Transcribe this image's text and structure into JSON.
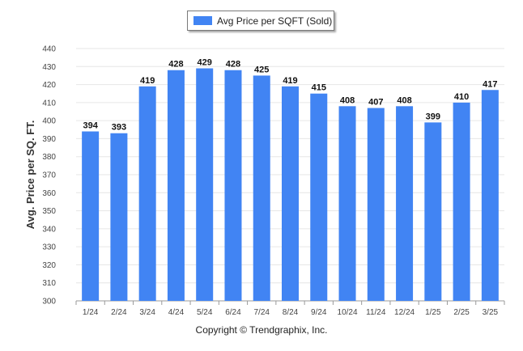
{
  "colors": {
    "bar": "#4184f3",
    "grid": "#e6e6e6",
    "axis": "#999999"
  },
  "legend": {
    "label": "Avg Price per SQFT (Sold)"
  },
  "footer": {
    "copyright": "Copyright © Trendgraphix, Inc."
  },
  "chart_data": {
    "type": "bar",
    "ylabel": "Avg. Price per SQ. FT.",
    "xlabel": "",
    "categories": [
      "1/24",
      "2/24",
      "3/24",
      "4/24",
      "5/24",
      "6/24",
      "7/24",
      "8/24",
      "9/24",
      "10/24",
      "11/24",
      "12/24",
      "1/25",
      "2/25",
      "3/25"
    ],
    "series": [
      {
        "name": "Avg Price per SQFT (Sold)",
        "values": [
          394,
          393,
          419,
          428,
          429,
          428,
          425,
          419,
          415,
          408,
          407,
          408,
          399,
          410,
          417
        ]
      }
    ],
    "ylim": [
      300,
      440
    ],
    "yticks": [
      300,
      310,
      320,
      330,
      340,
      350,
      360,
      370,
      380,
      390,
      400,
      410,
      420,
      430,
      440
    ],
    "grid": true,
    "legend_position": "top-center"
  }
}
